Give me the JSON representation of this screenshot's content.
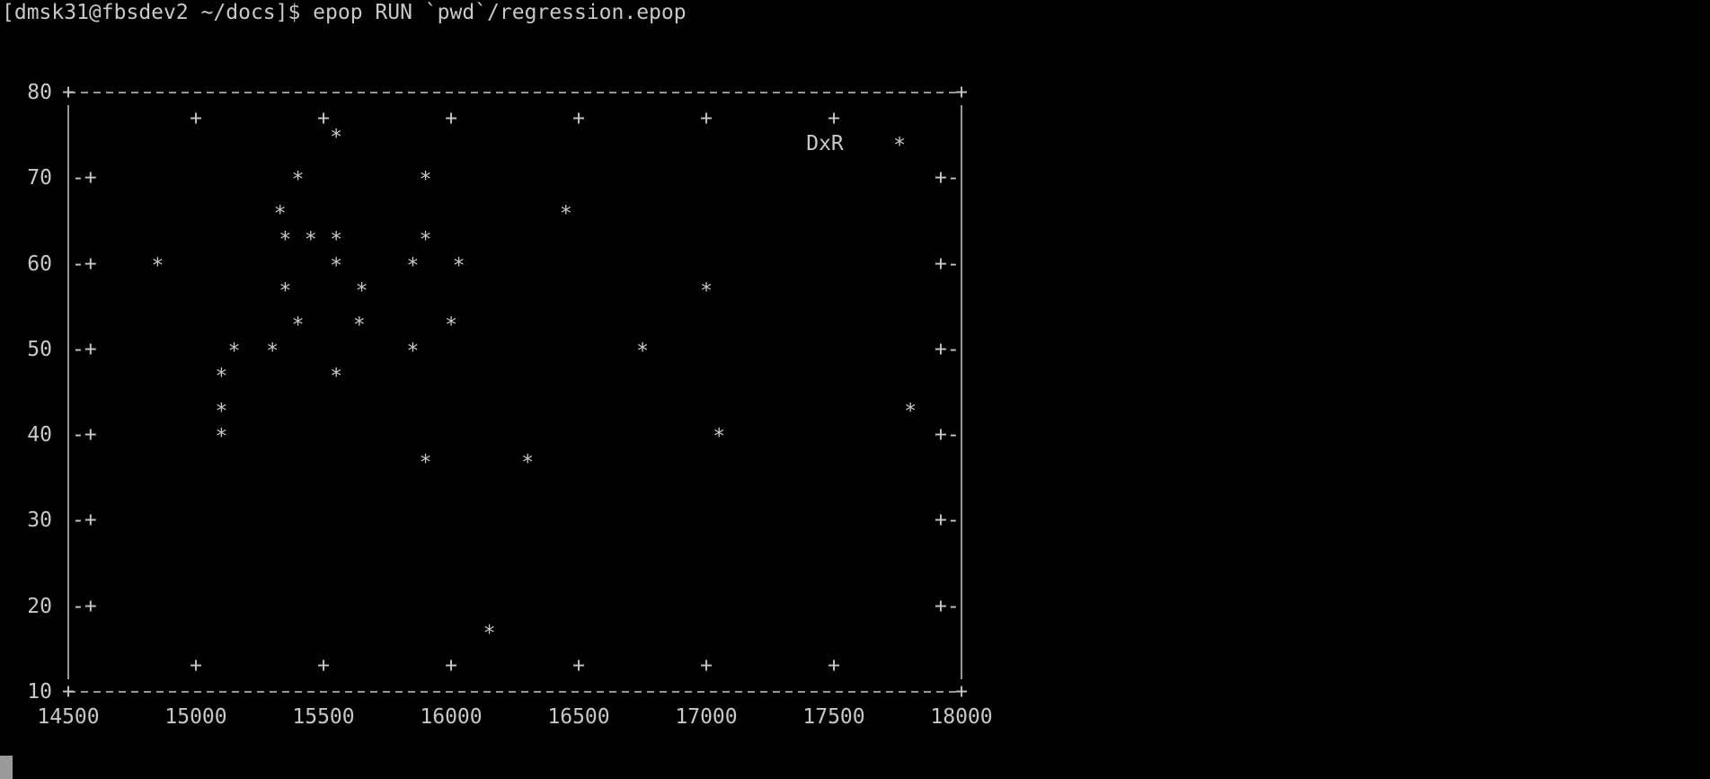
{
  "terminal": {
    "prompt": "[dmsk31@fbsdev2 ~/docs]$ epop RUN `pwd`/regression.epop"
  },
  "colors": {
    "background": "#000000",
    "text": "#c8c8c8",
    "cursor": "#9a9a9a"
  },
  "chart_data": {
    "type": "scatter",
    "title": "",
    "xlabel": "",
    "ylabel": "",
    "legend": [
      "DxR"
    ],
    "xlim": [
      14500,
      18000
    ],
    "ylim": [
      10,
      80
    ],
    "x_ticks": [
      "14500",
      "15000",
      "15500",
      "16000",
      "16500",
      "17000",
      "17500",
      "18000"
    ],
    "y_ticks": [
      "80",
      "70",
      "60",
      "50",
      "40",
      "30",
      "20",
      "10"
    ],
    "points": [
      {
        "x": 15550,
        "y": 75
      },
      {
        "x": 15400,
        "y": 70
      },
      {
        "x": 15900,
        "y": 70
      },
      {
        "x": 15330,
        "y": 66
      },
      {
        "x": 16450,
        "y": 66
      },
      {
        "x": 15350,
        "y": 63
      },
      {
        "x": 15450,
        "y": 63
      },
      {
        "x": 15550,
        "y": 63
      },
      {
        "x": 15900,
        "y": 63
      },
      {
        "x": 14850,
        "y": 60
      },
      {
        "x": 15550,
        "y": 60
      },
      {
        "x": 15850,
        "y": 60
      },
      {
        "x": 16030,
        "y": 60
      },
      {
        "x": 15350,
        "y": 57
      },
      {
        "x": 15650,
        "y": 57
      },
      {
        "x": 17000,
        "y": 57
      },
      {
        "x": 15400,
        "y": 53
      },
      {
        "x": 15640,
        "y": 53
      },
      {
        "x": 16000,
        "y": 53
      },
      {
        "x": 15150,
        "y": 50
      },
      {
        "x": 15300,
        "y": 50
      },
      {
        "x": 15850,
        "y": 50
      },
      {
        "x": 16750,
        "y": 50
      },
      {
        "x": 15100,
        "y": 47
      },
      {
        "x": 15550,
        "y": 47
      },
      {
        "x": 15100,
        "y": 43
      },
      {
        "x": 17800,
        "y": 43
      },
      {
        "x": 15100,
        "y": 40
      },
      {
        "x": 17050,
        "y": 40
      },
      {
        "x": 15900,
        "y": 37
      },
      {
        "x": 16300,
        "y": 37
      },
      {
        "x": 16150,
        "y": 17
      }
    ]
  }
}
